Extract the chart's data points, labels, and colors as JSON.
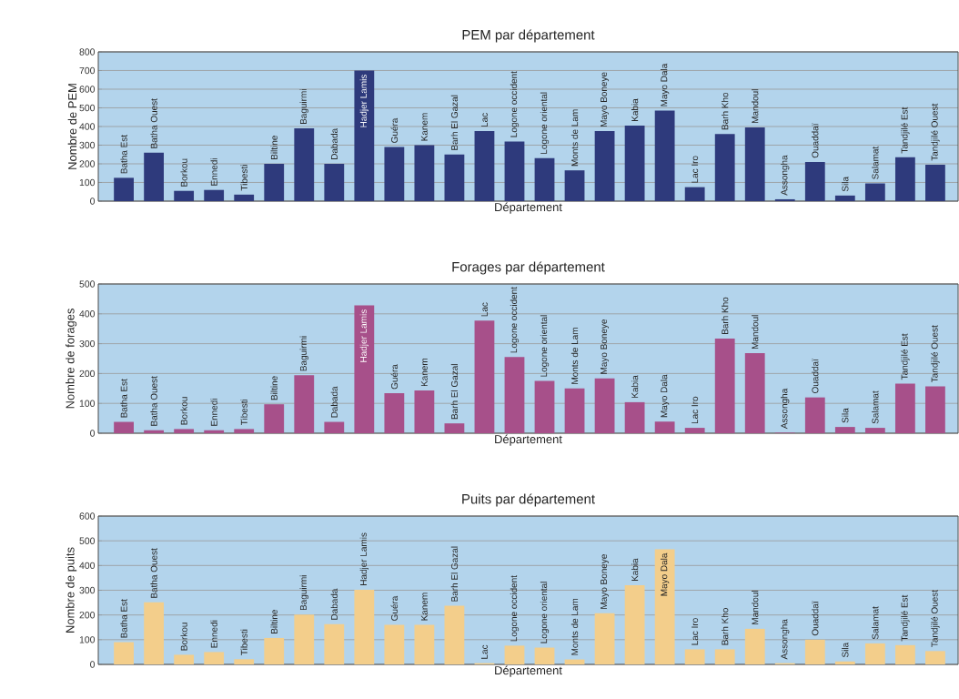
{
  "chart_data": [
    {
      "type": "bar",
      "title": "PEM par département",
      "xlabel": "Département",
      "ylabel": "Nombre de PEM",
      "color": "#2e3a7c",
      "grid": "y",
      "ylim": [
        0,
        800
      ],
      "yticks": [
        0,
        100,
        200,
        300,
        400,
        500,
        600,
        700,
        800
      ],
      "categories": [
        "Batha Est",
        "Batha Ouest",
        "Borkou",
        "Ennedi",
        "Tibesti",
        "Biltine",
        "Baguirmi",
        "Dabada",
        "Hadjer Lamis",
        "Guéra",
        "Kanem",
        "Barh El Gazal",
        "Lac",
        "Logone occident",
        "Logone oriental",
        "Monts de Lam",
        "Mayo Boneye",
        "Kabia",
        "Mayo Dala",
        "Lac Iro",
        "Barh Kho",
        "Mandoul",
        "Assongha",
        "Ouaddaï",
        "Sila",
        "Salamat",
        "Tandjilé Est",
        "Tandjilé Ouest"
      ],
      "values": [
        125,
        260,
        55,
        60,
        35,
        200,
        390,
        200,
        700,
        290,
        300,
        250,
        375,
        320,
        230,
        165,
        375,
        405,
        485,
        75,
        360,
        395,
        10,
        210,
        30,
        95,
        235,
        195
      ]
    },
    {
      "type": "bar",
      "title": "Forages par département",
      "xlabel": "Département",
      "ylabel": "Nombre de forages",
      "color": "#a7508a",
      "grid": "y",
      "ylim": [
        0,
        500
      ],
      "yticks": [
        0,
        100,
        200,
        300,
        400,
        500
      ],
      "categories": [
        "Batha Est",
        "Batha Ouest",
        "Borkou",
        "Ennedi",
        "Tibesti",
        "Biltine",
        "Baguirmi",
        "Dabada",
        "Hadjer Lamis",
        "Guéra",
        "Kanem",
        "Barh El Gazal",
        "Lac",
        "Logone occident",
        "Logone oriental",
        "Monts de Lam",
        "Mayo Boneye",
        "Kabia",
        "Mayo Dala",
        "Lac Iro",
        "Barh Kho",
        "Mandoul",
        "Assongha",
        "Ouaddaï",
        "Sila",
        "Salamat",
        "Tandjilé Est",
        "Tandjilé Ouest"
      ],
      "values": [
        38,
        10,
        14,
        10,
        14,
        97,
        194,
        38,
        428,
        134,
        143,
        33,
        377,
        255,
        175,
        150,
        184,
        104,
        39,
        18,
        317,
        268,
        2,
        120,
        21,
        18,
        166,
        157
      ]
    },
    {
      "type": "bar",
      "title": "Puits par département",
      "xlabel": "Département",
      "ylabel": "Nombre de puits",
      "color": "#f3ce8b",
      "grid": "y",
      "ylim": [
        0,
        600
      ],
      "yticks": [
        0,
        100,
        200,
        300,
        400,
        500,
        600
      ],
      "categories": [
        "Batha Est",
        "Batha Ouest",
        "Borkou",
        "Ennedi",
        "Tibesti",
        "Biltine",
        "Baguirmi",
        "Dabada",
        "Hadjer Lamis",
        "Guéra",
        "Kanem",
        "Barh El Gazal",
        "Lac",
        "Logone occident",
        "Logone oriental",
        "Monts de Lam",
        "Mayo Boneye",
        "Kabia",
        "Mayo Dala",
        "Lac Iro",
        "Barh Kho",
        "Mandoul",
        "Assongha",
        "Ouaddaï",
        "Sila",
        "Salamat",
        "Tandjilé Est",
        "Tandjilé Ouest"
      ],
      "values": [
        90,
        251,
        39,
        50,
        21,
        107,
        202,
        163,
        302,
        160,
        160,
        237,
        5,
        76,
        68,
        20,
        207,
        320,
        466,
        61,
        61,
        144,
        5,
        100,
        12,
        85,
        78,
        54
      ]
    }
  ]
}
